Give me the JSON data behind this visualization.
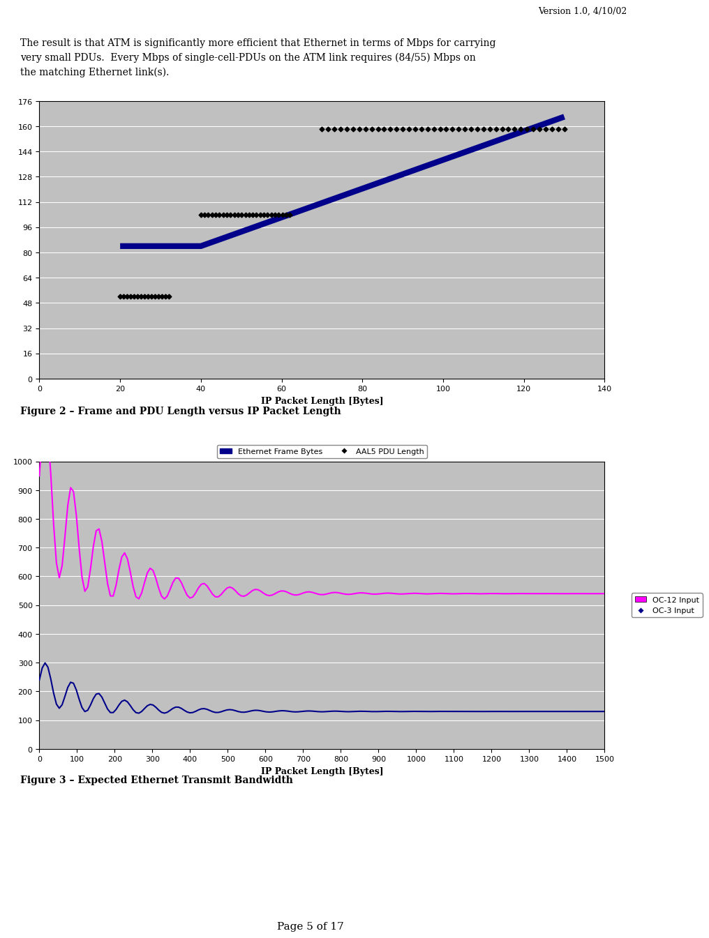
{
  "version_text": "Version 1.0, 4/10/02",
  "paragraph": "The result is that ATM is significantly more efficient that Ethernet in terms of Mbps for carrying\nvery small PDUs.  Every Mbps of single-cell-PDUs on the ATM link requires (84/55) Mbps on\nthe matching Ethernet link(s).",
  "fig2_title": "Figure 2 – Frame and PDU Length versus IP Packet Length",
  "fig2_underline": "Figure 2",
  "fig3_title": "Figure 3 – Expected Ethernet Transmit Bandwidth",
  "fig3_underline": "Figure 3",
  "page_footer": "Page 5 of 17",
  "chart1": {
    "xlabel": "IP Packet Length [Bytes]",
    "xlim": [
      0,
      140
    ],
    "ylim": [
      0,
      176
    ],
    "xticks": [
      0,
      20,
      40,
      60,
      80,
      100,
      120,
      140
    ],
    "yticks": [
      0,
      16,
      32,
      48,
      64,
      80,
      96,
      112,
      128,
      144,
      160,
      176
    ],
    "bg_color": "#C0C0C0",
    "legend_labels": [
      "Ethernet Frame Bytes",
      "AAL5 PDU Length"
    ],
    "legend_colors": [
      "#00008B",
      "#000000"
    ],
    "eth_line_x": [
      20,
      40,
      130
    ],
    "eth_line_y": [
      84,
      84,
      166
    ],
    "eth_color": "#00008B",
    "eth_linewidth": 6,
    "aal5_clusters": [
      {
        "x_start": 20,
        "x_end": 32,
        "y": 52,
        "count": 15
      },
      {
        "x_start": 40,
        "x_end": 62,
        "y": 104,
        "count": 25
      },
      {
        "x_start": 70,
        "x_end": 130,
        "y": 158,
        "count": 40
      }
    ],
    "aal5_color": "#000000"
  },
  "chart2": {
    "xlabel": "IP Packet Length [Bytes]",
    "xlim": [
      0,
      1500
    ],
    "ylim": [
      0,
      1000
    ],
    "xticks": [
      0,
      100,
      200,
      300,
      400,
      500,
      600,
      700,
      800,
      900,
      1000,
      1100,
      1200,
      1300,
      1400,
      1500
    ],
    "yticks": [
      0,
      100,
      200,
      300,
      400,
      500,
      600,
      700,
      800,
      900,
      1000
    ],
    "bg_color": "#C0C0C0",
    "legend_labels": [
      "OC-12 Input",
      "OC-3 Input"
    ],
    "legend_colors": [
      "#FF00FF",
      "#00008B"
    ],
    "oc12_start_y": 950,
    "oc12_settle_y": 540,
    "oc3_start_y": 240,
    "oc3_settle_y": 130
  }
}
